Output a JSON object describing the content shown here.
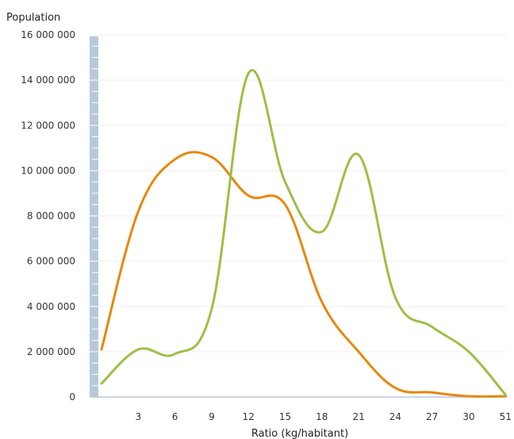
{
  "chart_data": {
    "type": "line",
    "title": "",
    "ylabel": "Population",
    "xlabel": "Ratio (kg/habitant)",
    "x": [
      0,
      3,
      6,
      9,
      12,
      15,
      18,
      21,
      24,
      27,
      30,
      51
    ],
    "xtick_labels": [
      "3",
      "6",
      "9",
      "12",
      "15",
      "18",
      "21",
      "24",
      "27",
      "30",
      "51"
    ],
    "yticks": [
      0,
      2000000,
      4000000,
      6000000,
      8000000,
      10000000,
      12000000,
      14000000,
      16000000
    ],
    "ytick_labels": [
      "0",
      "2 000 000",
      "4 000 000",
      "6 000 000",
      "8 000 000",
      "10 000 000",
      "12 000 000",
      "14 000 000",
      "16 000 000"
    ],
    "ylim": [
      0,
      16000000
    ],
    "grid": true,
    "series": [
      {
        "color": "#e8870e",
        "values": [
          2100000,
          8200000,
          10500000,
          10600000,
          8900000,
          8500000,
          4200000,
          2000000,
          400000,
          200000,
          0,
          0
        ]
      },
      {
        "color": "#9dbf45",
        "values": [
          600000,
          2100000,
          1900000,
          3900000,
          14300000,
          9500000,
          7300000,
          10700000,
          4400000,
          3100000,
          2000000,
          100000
        ]
      }
    ]
  }
}
